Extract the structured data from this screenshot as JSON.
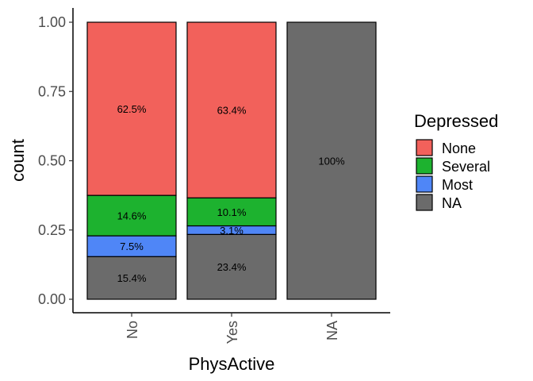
{
  "chart_data": {
    "type": "bar",
    "stacked": true,
    "xlabel": "PhysActive",
    "ylabel": "count",
    "ylim": [
      0,
      1
    ],
    "yticks": [
      "0.00",
      "0.25",
      "0.50",
      "0.75",
      "1.00"
    ],
    "categories": [
      "No",
      "Yes",
      "NA"
    ],
    "legend": {
      "title": "Depressed",
      "position": "right"
    },
    "grid": false,
    "series": [
      {
        "name": "NA",
        "color": "#6b6b6b",
        "values": [
          0.154,
          0.234,
          1.0
        ],
        "labels": [
          "15.4%",
          "23.4%",
          "100%"
        ]
      },
      {
        "name": "Most",
        "color": "#4f86f7",
        "values": [
          0.075,
          0.031,
          0.0
        ],
        "labels": [
          "7.5%",
          "3.1%",
          ""
        ]
      },
      {
        "name": "Several",
        "color": "#1db22f",
        "values": [
          0.146,
          0.101,
          0.0
        ],
        "labels": [
          "14.6%",
          "10.1%",
          ""
        ]
      },
      {
        "name": "None",
        "color": "#f2615b",
        "values": [
          0.625,
          0.634,
          0.0
        ],
        "labels": [
          "62.5%",
          "63.4%",
          ""
        ]
      }
    ],
    "legend_order": [
      "None",
      "Several",
      "Most",
      "NA"
    ]
  }
}
